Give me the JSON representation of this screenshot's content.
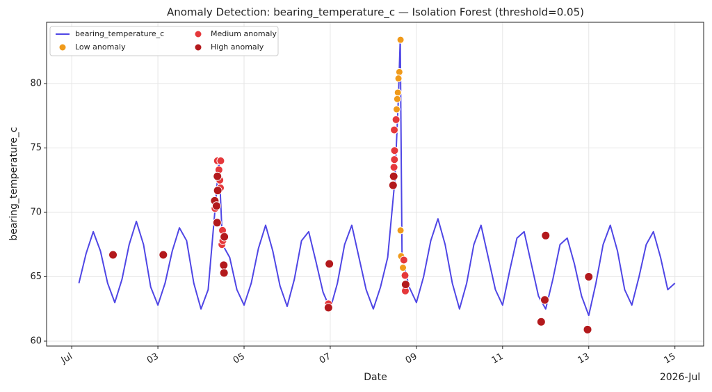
{
  "chart_data": {
    "type": "line",
    "title": "Anomaly Detection: bearing_temperature_c — Isolation Forest (threshold=0.05)",
    "x_label": "Date",
    "y_label": "bearing_temperature_c",
    "x_offset_label": "2026-Jul",
    "xlim": [
      "2026-06-30T10:00",
      "2026-07-15T16:00"
    ],
    "ylim": [
      59.62,
      84.76
    ],
    "yticks": [
      60,
      65,
      70,
      75,
      80
    ],
    "xticks": [
      {
        "value": "2026-07-01T00:00",
        "label": "Jul"
      },
      {
        "value": "2026-07-03T00:00",
        "label": "03"
      },
      {
        "value": "2026-07-05T00:00",
        "label": "05"
      },
      {
        "value": "2026-07-07T00:00",
        "label": "07"
      },
      {
        "value": "2026-07-09T00:00",
        "label": "09"
      },
      {
        "value": "2026-07-11T00:00",
        "label": "11"
      },
      {
        "value": "2026-07-13T00:00",
        "label": "13"
      },
      {
        "value": "2026-07-15T00:00",
        "label": "15"
      }
    ],
    "grid": true,
    "legend": "upper left",
    "series": [
      {
        "name": "bearing_temperature_c",
        "kind": "line",
        "color": "#4f46e5",
        "x": [
          "2026-07-01T04:00",
          "2026-07-01T08:00",
          "2026-07-01T12:00",
          "2026-07-01T16:00",
          "2026-07-01T20:00",
          "2026-07-02T00:00",
          "2026-07-02T04:00",
          "2026-07-02T08:00",
          "2026-07-02T12:00",
          "2026-07-02T16:00",
          "2026-07-02T20:00",
          "2026-07-03T00:00",
          "2026-07-03T04:00",
          "2026-07-03T08:00",
          "2026-07-03T12:00",
          "2026-07-03T16:00",
          "2026-07-03T20:00",
          "2026-07-04T00:00",
          "2026-07-04T04:00",
          "2026-07-04T08:00",
          "2026-07-04T10:00",
          "2026-07-04T12:00",
          "2026-07-04T16:00",
          "2026-07-04T20:00",
          "2026-07-05T00:00",
          "2026-07-05T04:00",
          "2026-07-05T08:00",
          "2026-07-05T12:00",
          "2026-07-05T16:00",
          "2026-07-05T20:00",
          "2026-07-06T00:00",
          "2026-07-06T04:00",
          "2026-07-06T08:00",
          "2026-07-06T12:00",
          "2026-07-06T16:00",
          "2026-07-06T20:00",
          "2026-07-07T00:00",
          "2026-07-07T04:00",
          "2026-07-07T08:00",
          "2026-07-07T12:00",
          "2026-07-07T16:00",
          "2026-07-07T20:00",
          "2026-07-08T00:00",
          "2026-07-08T04:00",
          "2026-07-08T08:00",
          "2026-07-08T12:00",
          "2026-07-08T14:00",
          "2026-07-08T15:00",
          "2026-07-08T16:00",
          "2026-07-08T20:00",
          "2026-07-09T00:00",
          "2026-07-09T04:00",
          "2026-07-09T08:00",
          "2026-07-09T12:00",
          "2026-07-09T16:00",
          "2026-07-09T20:00",
          "2026-07-10T00:00",
          "2026-07-10T04:00",
          "2026-07-10T08:00",
          "2026-07-10T12:00",
          "2026-07-10T16:00",
          "2026-07-10T20:00",
          "2026-07-11T00:00",
          "2026-07-11T04:00",
          "2026-07-11T08:00",
          "2026-07-11T12:00",
          "2026-07-11T16:00",
          "2026-07-11T20:00",
          "2026-07-12T00:00",
          "2026-07-12T04:00",
          "2026-07-12T08:00",
          "2026-07-12T12:00",
          "2026-07-12T16:00",
          "2026-07-12T20:00",
          "2026-07-13T00:00",
          "2026-07-13T04:00",
          "2026-07-13T08:00",
          "2026-07-13T12:00",
          "2026-07-13T16:00",
          "2026-07-13T20:00",
          "2026-07-14T00:00",
          "2026-07-14T04:00",
          "2026-07-14T08:00",
          "2026-07-14T12:00",
          "2026-07-14T16:00",
          "2026-07-14T20:00",
          "2026-07-15T00:00"
        ],
        "values": [
          64.5,
          66.8,
          68.5,
          67.0,
          64.5,
          63.0,
          64.8,
          67.5,
          69.3,
          67.5,
          64.2,
          62.8,
          64.5,
          67.0,
          68.8,
          67.8,
          64.5,
          62.5,
          64.0,
          70.5,
          74.0,
          67.5,
          66.5,
          64.0,
          62.8,
          64.5,
          67.2,
          69.0,
          67.0,
          64.3,
          62.7,
          64.8,
          67.8,
          68.5,
          66.2,
          63.8,
          62.5,
          64.5,
          67.5,
          69.0,
          66.5,
          64.0,
          62.5,
          64.2,
          66.5,
          72.5,
          79.0,
          83.5,
          66.5,
          64.2,
          63.0,
          65.0,
          67.8,
          69.5,
          67.5,
          64.5,
          62.5,
          64.5,
          67.5,
          69.0,
          66.5,
          64.0,
          62.8,
          65.5,
          68.0,
          68.5,
          66.0,
          63.5,
          62.5,
          64.8,
          67.5,
          68.0,
          66.0,
          63.5,
          62.0,
          64.5,
          67.5,
          69.0,
          67.0,
          64.0,
          62.8,
          65.0,
          67.5,
          68.5,
          66.5,
          64.0,
          64.5
        ]
      },
      {
        "name": "Low anomaly",
        "kind": "scatter",
        "color": "#f09a1a",
        "x": [
          "2026-07-08T15:10",
          "2026-07-08T14:30",
          "2026-07-08T14:00",
          "2026-07-08T13:40",
          "2026-07-08T13:00",
          "2026-07-08T13:20",
          "2026-07-08T15:10",
          "2026-07-08T15:30",
          "2026-07-08T16:30"
        ],
        "values": [
          83.4,
          80.9,
          80.4,
          79.3,
          78.0,
          78.8,
          68.6,
          66.6,
          65.7
        ]
      },
      {
        "name": "Medium anomaly",
        "kind": "scatter",
        "color": "#e5383b",
        "x": [
          "2026-07-04T09:10",
          "2026-07-04T11:00",
          "2026-07-04T10:00",
          "2026-07-04T10:30",
          "2026-07-04T10:50",
          "2026-07-04T12:00",
          "2026-07-04T11:40",
          "2026-07-04T12:10",
          "2026-07-04T07:50",
          "2026-07-06T23:00",
          "2026-07-08T11:40",
          "2026-07-08T12:40",
          "2026-07-08T11:50",
          "2026-07-08T11:45",
          "2026-07-08T11:30",
          "2026-07-08T17:00",
          "2026-07-08T17:40",
          "2026-07-08T17:50"
        ],
        "values": [
          74.0,
          74.0,
          73.3,
          72.5,
          71.9,
          68.6,
          67.5,
          67.8,
          70.3,
          62.9,
          76.4,
          77.2,
          74.8,
          74.1,
          73.5,
          66.3,
          65.1,
          63.9
        ]
      },
      {
        "name": "High anomaly",
        "kind": "scatter",
        "color": "#b3191c",
        "x": [
          "2026-07-01T23:00",
          "2026-07-03T03:00",
          "2026-07-04T07:40",
          "2026-07-04T08:40",
          "2026-07-04T09:00",
          "2026-07-04T09:10",
          "2026-07-04T09:20",
          "2026-07-04T12:40",
          "2026-07-04T12:50",
          "2026-07-04T13:00",
          "2026-07-06T23:30",
          "2026-07-06T23:00",
          "2026-07-08T11:00",
          "2026-07-08T11:20",
          "2026-07-08T18:00",
          "2026-07-11T21:30",
          "2026-07-11T23:30",
          "2026-07-12T00:00",
          "2026-07-12T23:20",
          "2026-07-13T00:00"
        ],
        "values": [
          66.7,
          66.7,
          70.9,
          70.5,
          69.2,
          72.8,
          71.7,
          65.9,
          65.3,
          68.1,
          66.0,
          62.6,
          72.1,
          72.8,
          64.4,
          61.5,
          63.2,
          68.2,
          60.9,
          65.0
        ]
      }
    ]
  }
}
